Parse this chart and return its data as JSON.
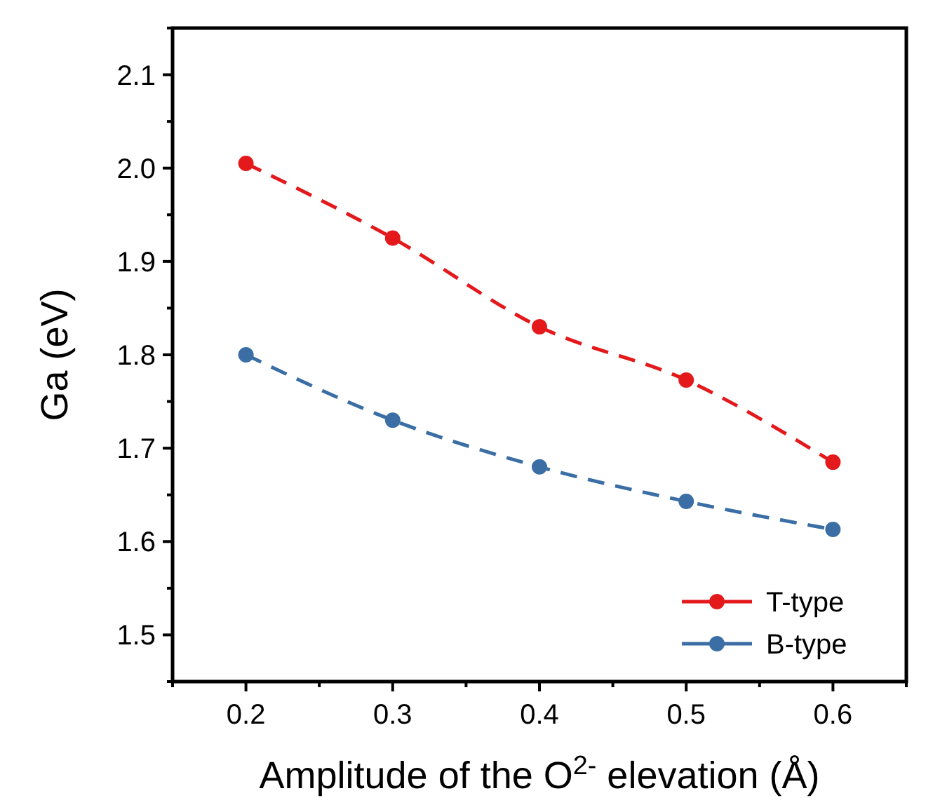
{
  "chart_data": {
    "type": "line",
    "xlabel": "Amplitude of the O$^{2-}$ elevation (Å)",
    "ylabel": "Ga (eV)",
    "x": [
      0.2,
      0.3,
      0.4,
      0.5,
      0.6
    ],
    "series": [
      {
        "name": "T-type",
        "color": "#e3191c",
        "values": [
          2.005,
          1.925,
          1.83,
          1.773,
          1.685
        ]
      },
      {
        "name": "B-type",
        "color": "#3a6ea5",
        "values": [
          1.8,
          1.73,
          1.68,
          1.643,
          1.613
        ]
      }
    ],
    "xlim": [
      0.15,
      0.65
    ],
    "xticks": [
      {
        "value": 0.15,
        "label": null
      },
      0.2,
      {
        "value": 0.25,
        "label": null
      },
      0.3,
      {
        "value": 0.35,
        "label": null
      },
      0.4,
      {
        "value": 0.45,
        "label": null
      },
      0.5,
      {
        "value": 0.55,
        "label": null
      },
      0.6,
      {
        "value": 0.65,
        "label": null
      }
    ],
    "ylim": [
      1.45,
      2.15
    ],
    "yticks": [
      {
        "value": 1.45,
        "label": null
      },
      1.5,
      {
        "value": 1.55,
        "label": null
      },
      1.6,
      {
        "value": 1.65,
        "label": null
      },
      1.7,
      {
        "value": 1.75,
        "label": null
      },
      1.8,
      {
        "value": 1.85,
        "label": null
      },
      1.9,
      {
        "value": 1.95,
        "label": null
      },
      {
        "value": 2.0,
        "label": "2.0"
      },
      {
        "value": 2.05,
        "label": null
      },
      2.1,
      {
        "value": 2.15,
        "label": null
      }
    ],
    "grid": false,
    "legend": "bottom right",
    "marker": "circle",
    "line_style": "dashed"
  }
}
